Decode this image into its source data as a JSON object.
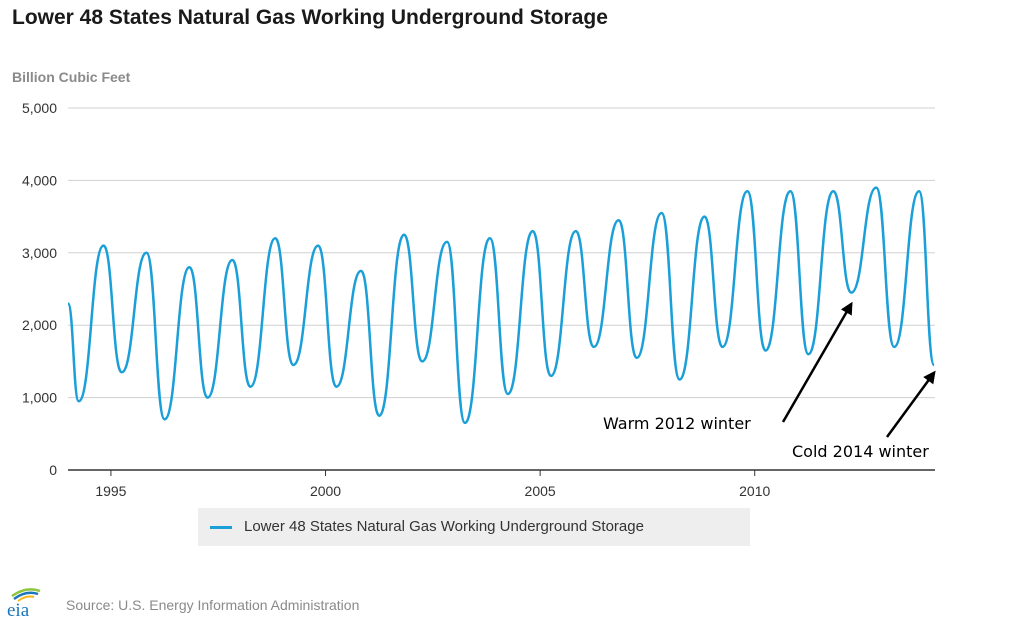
{
  "chart_data": {
    "type": "line",
    "title": "Lower 48 States Natural Gas Working Underground Storage",
    "ylabel": "Billion Cubic Feet",
    "xlabel": "",
    "ylim": [
      0,
      5000
    ],
    "yticks": [
      0,
      1000,
      2000,
      3000,
      4000,
      5000
    ],
    "ytick_labels": [
      "0",
      "1,000",
      "2,000",
      "3,000",
      "4,000",
      "5,000"
    ],
    "xlim": [
      1994.0,
      2014.2
    ],
    "xticks": [
      1995,
      2000,
      2005,
      2010
    ],
    "xtick_labels": [
      "1995",
      "2000",
      "2005",
      "2010"
    ],
    "grid": "horizontal",
    "legend_position": "bottom",
    "series": [
      {
        "name": "Lower 48 States Natural Gas Working Underground Storage",
        "color": "#1b9fd8",
        "points": [
          [
            1994.0,
            2300
          ],
          [
            1994.25,
            950
          ],
          [
            1994.83,
            3100
          ],
          [
            1995.25,
            1350
          ],
          [
            1995.83,
            3000
          ],
          [
            1996.25,
            700
          ],
          [
            1996.83,
            2800
          ],
          [
            1997.25,
            1000
          ],
          [
            1997.83,
            2900
          ],
          [
            1998.25,
            1150
          ],
          [
            1998.83,
            3200
          ],
          [
            1999.25,
            1450
          ],
          [
            1999.83,
            3100
          ],
          [
            2000.25,
            1150
          ],
          [
            2000.83,
            2750
          ],
          [
            2001.25,
            750
          ],
          [
            2001.83,
            3250
          ],
          [
            2002.25,
            1500
          ],
          [
            2002.83,
            3150
          ],
          [
            2003.25,
            650
          ],
          [
            2003.83,
            3200
          ],
          [
            2004.25,
            1050
          ],
          [
            2004.83,
            3300
          ],
          [
            2005.25,
            1300
          ],
          [
            2005.83,
            3300
          ],
          [
            2006.25,
            1700
          ],
          [
            2006.83,
            3450
          ],
          [
            2007.25,
            1550
          ],
          [
            2007.83,
            3550
          ],
          [
            2008.25,
            1250
          ],
          [
            2008.83,
            3500
          ],
          [
            2009.25,
            1700
          ],
          [
            2009.83,
            3850
          ],
          [
            2010.25,
            1650
          ],
          [
            2010.83,
            3850
          ],
          [
            2011.25,
            1600
          ],
          [
            2011.83,
            3850
          ],
          [
            2012.25,
            2450
          ],
          [
            2012.83,
            3900
          ],
          [
            2013.25,
            1700
          ],
          [
            2013.83,
            3850
          ],
          [
            2014.18,
            1450
          ]
        ]
      }
    ],
    "annotations": [
      {
        "text": "Warm 2012 winter",
        "target": [
          2012.25,
          2350
        ]
      },
      {
        "text": "Cold 2014 winter",
        "target": [
          2014.18,
          1400
        ]
      }
    ]
  },
  "legend_label": "Lower 48 States Natural Gas Working Underground Storage",
  "source_text": "Source: U.S. Energy Information Administration",
  "logo_text": "eia",
  "colors": {
    "series": "#1b9fd8",
    "grid": "#d0d0d0",
    "axis": "#333333",
    "text": "#1a1a1a",
    "muted": "#8a8a8a",
    "legend_bg": "#eeeeee",
    "logo_green": "#8cc63f",
    "logo_blue": "#1b75bb",
    "logo_yellow": "#f7b718"
  }
}
